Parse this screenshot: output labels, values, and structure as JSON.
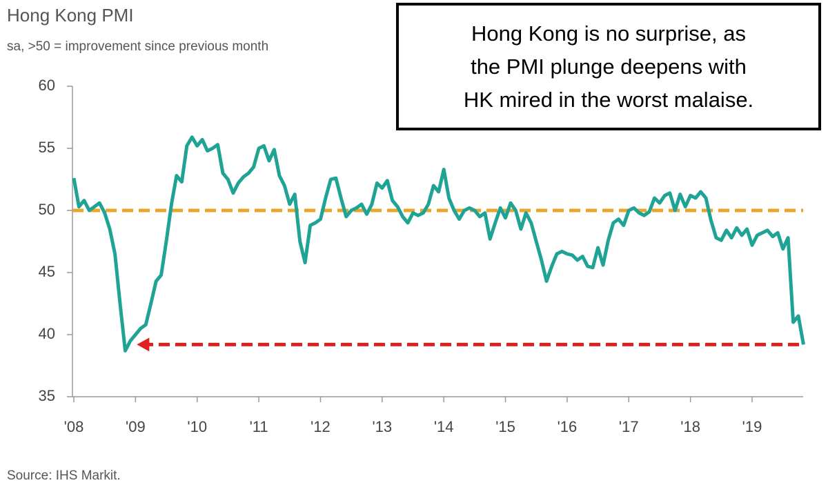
{
  "chart_data": {
    "type": "line",
    "title": "Hong Kong PMI",
    "subtitle": "sa, >50 = improvement since previous month",
    "source": "Source: IHS Markit.",
    "annotation": [
      "Hong Kong is no surprise, as",
      "the PMI plunge deepens with",
      "HK mired in the worst malaise."
    ],
    "categories": [
      "'08",
      null,
      null,
      null,
      null,
      null,
      null,
      null,
      null,
      null,
      null,
      null,
      "'09",
      null,
      null,
      null,
      null,
      null,
      null,
      null,
      null,
      null,
      null,
      null,
      "'10",
      null,
      null,
      null,
      null,
      null,
      null,
      null,
      null,
      null,
      null,
      null,
      "'11",
      null,
      null,
      null,
      null,
      null,
      null,
      null,
      null,
      null,
      null,
      null,
      "'12",
      null,
      null,
      null,
      null,
      null,
      null,
      null,
      null,
      null,
      null,
      null,
      "'13",
      null,
      null,
      null,
      null,
      null,
      null,
      null,
      null,
      null,
      null,
      null,
      "'14",
      null,
      null,
      null,
      null,
      null,
      null,
      null,
      null,
      null,
      null,
      null,
      "'15",
      null,
      null,
      null,
      null,
      null,
      null,
      null,
      null,
      null,
      null,
      null,
      "'16",
      null,
      null,
      null,
      null,
      null,
      null,
      null,
      null,
      null,
      null,
      null,
      "'17",
      null,
      null,
      null,
      null,
      null,
      null,
      null,
      null,
      null,
      null,
      null,
      "'18",
      null,
      null,
      null,
      null,
      null,
      null,
      null,
      null,
      null,
      null,
      null,
      "'19",
      null,
      null,
      null,
      null,
      null,
      null,
      null,
      null,
      null,
      null
    ],
    "series": [
      {
        "color": "#1fa394",
        "values": [
          52.6,
          50.3,
          50.8,
          50.0,
          50.3,
          50.6,
          49.8,
          48.5,
          46.5,
          42.5,
          38.7,
          39.5,
          40.0,
          40.5,
          40.8,
          42.5,
          44.3,
          44.8,
          47.5,
          50.5,
          52.8,
          52.3,
          55.2,
          55.9,
          55.2,
          55.7,
          54.8,
          55.0,
          55.3,
          53.0,
          52.5,
          51.4,
          52.2,
          52.7,
          53.0,
          53.5,
          55.0,
          55.2,
          54.0,
          54.9,
          52.8,
          52.0,
          50.5,
          51.3,
          47.5,
          45.8,
          48.8,
          49.0,
          49.3,
          51.0,
          52.5,
          52.6,
          51.0,
          49.5,
          50.0,
          50.2,
          50.5,
          49.7,
          50.5,
          52.2,
          51.8,
          52.4,
          50.8,
          50.3,
          49.5,
          49.0,
          49.8,
          49.6,
          49.8,
          50.5,
          52.0,
          51.5,
          53.3,
          51.0,
          50.0,
          49.3,
          50.0,
          50.2,
          50.0,
          49.5,
          49.8,
          47.7,
          49.0,
          50.2,
          49.4,
          50.6,
          50.0,
          48.5,
          49.8,
          49.0,
          47.5,
          46.0,
          44.3,
          45.5,
          46.5,
          46.7,
          46.5,
          46.4,
          46.0,
          46.3,
          45.5,
          45.4,
          47.0,
          45.6,
          47.6,
          49.0,
          49.3,
          48.8,
          50.0,
          50.2,
          49.8,
          49.6,
          49.9,
          51.0,
          50.6,
          51.2,
          51.4,
          50.0,
          51.3,
          50.3,
          51.2,
          51.0,
          51.5,
          51.0,
          49.2,
          47.8,
          47.6,
          48.4,
          47.8,
          48.6,
          48.0,
          48.5,
          47.2,
          48.0,
          48.2,
          48.4,
          47.9,
          48.2,
          46.9,
          47.8,
          41.0,
          41.5,
          39.2
        ]
      }
    ],
    "ylim": [
      35,
      60
    ],
    "yticks": [
      35,
      40,
      45,
      50,
      55,
      60
    ],
    "reference_line": {
      "value": 50,
      "color": "#e8a62a"
    },
    "arrow": {
      "value": 39.2,
      "color": "#e0201e"
    }
  }
}
